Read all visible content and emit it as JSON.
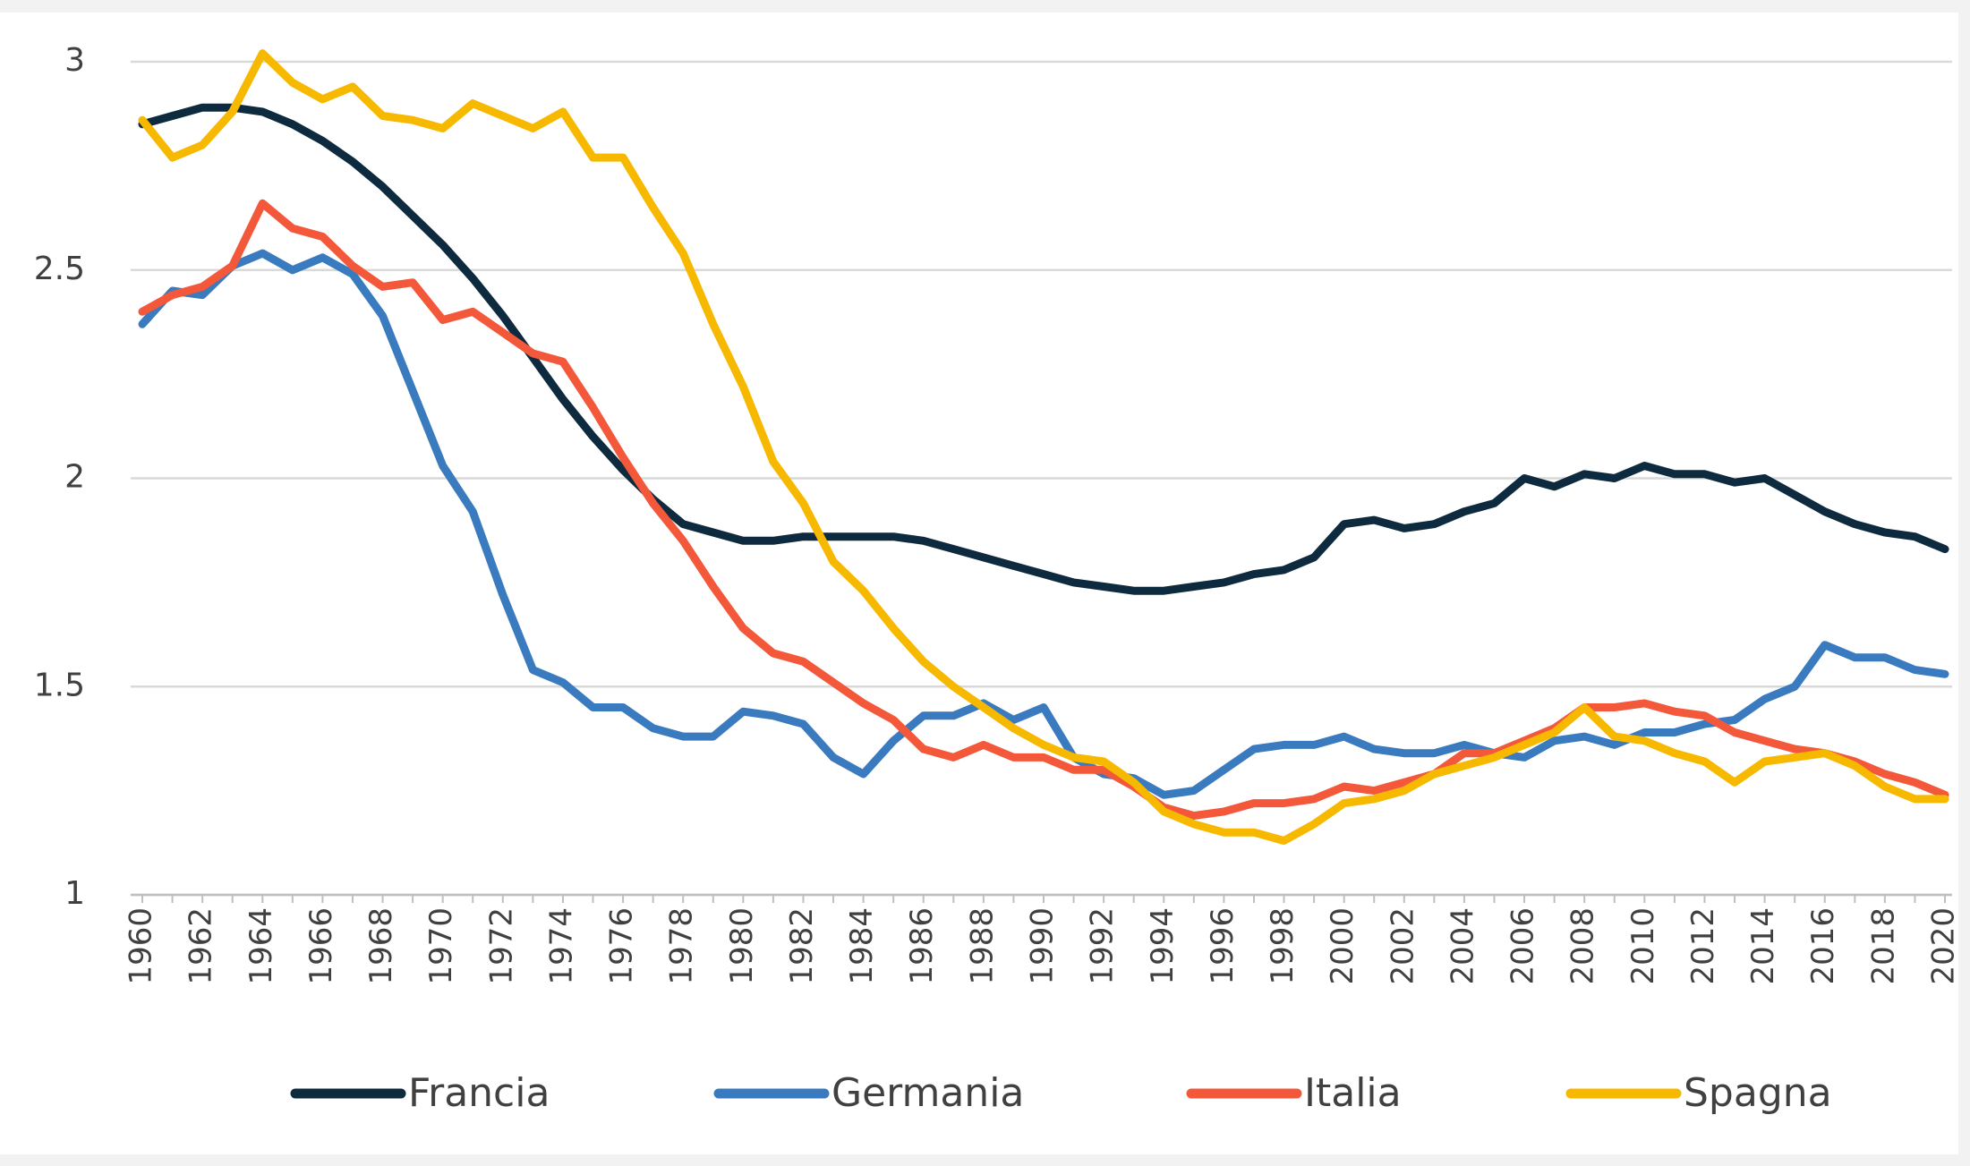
{
  "chart_data": {
    "type": "line",
    "categories": [
      1960,
      null,
      1962,
      null,
      1964,
      null,
      1966,
      null,
      1968,
      null,
      1970,
      null,
      1972,
      null,
      1974,
      null,
      1976,
      null,
      1978,
      null,
      1980,
      null,
      1982,
      null,
      1984,
      null,
      1986,
      null,
      1988,
      null,
      1990,
      null,
      1992,
      null,
      1994,
      null,
      1996,
      null,
      1998,
      null,
      2000,
      null,
      2002,
      null,
      2004,
      null,
      2006,
      null,
      2008,
      null,
      2010,
      null,
      2012,
      null,
      2014,
      null,
      2016,
      null,
      2018,
      null,
      2020
    ],
    "series": [
      {
        "name": "Francia",
        "color": "#0d2a3e",
        "values": [
          2.85,
          2.87,
          2.89,
          2.89,
          2.88,
          2.85,
          2.81,
          2.76,
          2.7,
          2.63,
          2.56,
          2.48,
          2.39,
          2.29,
          2.19,
          2.1,
          2.02,
          1.95,
          1.89,
          1.87,
          1.85,
          1.85,
          1.86,
          1.86,
          1.86,
          1.86,
          1.85,
          1.83,
          1.81,
          1.79,
          1.77,
          1.75,
          1.74,
          1.73,
          1.73,
          1.74,
          1.75,
          1.77,
          1.78,
          1.81,
          1.89,
          1.9,
          1.88,
          1.89,
          1.92,
          1.94,
          2.0,
          1.98,
          2.01,
          2.0,
          2.03,
          2.01,
          2.01,
          1.99,
          2.0,
          1.96,
          1.92,
          1.89,
          1.87,
          1.86,
          1.83
        ]
      },
      {
        "name": "Germania",
        "color": "#3a7bbf",
        "values": [
          2.37,
          2.45,
          2.44,
          2.51,
          2.54,
          2.5,
          2.53,
          2.49,
          2.39,
          2.21,
          2.03,
          1.92,
          1.72,
          1.54,
          1.51,
          1.45,
          1.45,
          1.4,
          1.38,
          1.38,
          1.44,
          1.43,
          1.41,
          1.33,
          1.29,
          1.37,
          1.43,
          1.43,
          1.46,
          1.42,
          1.45,
          1.33,
          1.29,
          1.28,
          1.24,
          1.25,
          1.3,
          1.35,
          1.36,
          1.36,
          1.38,
          1.35,
          1.34,
          1.34,
          1.36,
          1.34,
          1.33,
          1.37,
          1.38,
          1.36,
          1.39,
          1.39,
          1.41,
          1.42,
          1.47,
          1.5,
          1.6,
          1.57,
          1.57,
          1.54,
          1.53
        ]
      },
      {
        "name": "Italia",
        "color": "#f4583a",
        "values": [
          2.4,
          2.44,
          2.46,
          2.51,
          2.66,
          2.6,
          2.58,
          2.51,
          2.46,
          2.47,
          2.38,
          2.4,
          2.35,
          2.3,
          2.28,
          2.17,
          2.05,
          1.94,
          1.85,
          1.74,
          1.64,
          1.58,
          1.56,
          1.51,
          1.46,
          1.42,
          1.35,
          1.33,
          1.36,
          1.33,
          1.33,
          1.3,
          1.3,
          1.26,
          1.21,
          1.19,
          1.2,
          1.22,
          1.22,
          1.23,
          1.26,
          1.25,
          1.27,
          1.29,
          1.34,
          1.34,
          1.37,
          1.4,
          1.45,
          1.45,
          1.46,
          1.44,
          1.43,
          1.39,
          1.37,
          1.35,
          1.34,
          1.32,
          1.29,
          1.27,
          1.24
        ]
      },
      {
        "name": "Spagna",
        "color": "#f7b800",
        "values": [
          2.86,
          2.77,
          2.8,
          2.88,
          3.02,
          2.95,
          2.91,
          2.94,
          2.87,
          2.86,
          2.84,
          2.9,
          2.87,
          2.84,
          2.88,
          2.77,
          2.77,
          2.65,
          2.54,
          2.37,
          2.22,
          2.04,
          1.94,
          1.8,
          1.73,
          1.64,
          1.56,
          1.5,
          1.45,
          1.4,
          1.36,
          1.33,
          1.32,
          1.27,
          1.2,
          1.17,
          1.15,
          1.15,
          1.13,
          1.17,
          1.22,
          1.23,
          1.25,
          1.29,
          1.31,
          1.33,
          1.36,
          1.39,
          1.45,
          1.38,
          1.37,
          1.34,
          1.32,
          1.27,
          1.32,
          1.33,
          1.34,
          1.31,
          1.26,
          1.23,
          1.23
        ]
      }
    ],
    "ylim": [
      1,
      3
    ],
    "yticks": [
      1,
      1.5,
      2,
      2.5,
      3
    ],
    "grid": true
  }
}
